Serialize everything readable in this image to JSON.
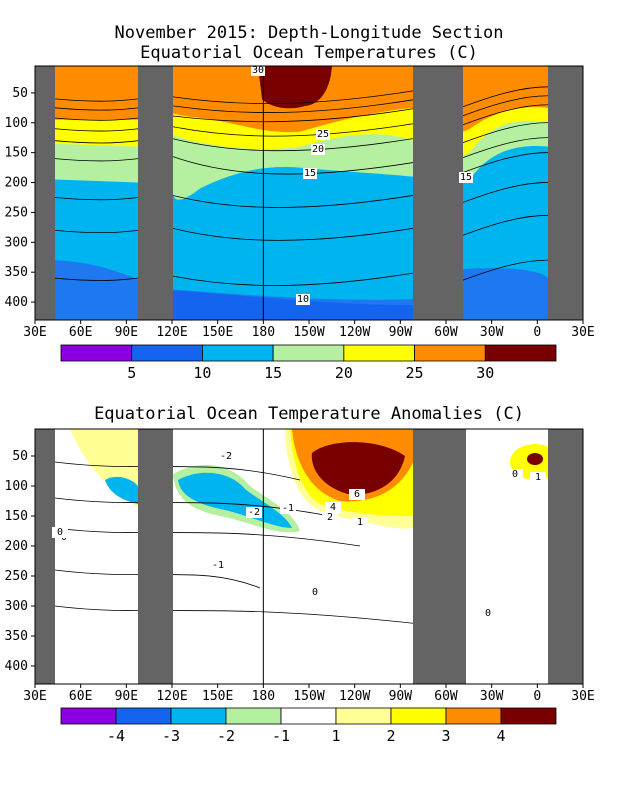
{
  "chart_data": [
    {
      "type": "heatmap",
      "title": "November 2015: Depth-Longitude Section",
      "subtitle": "Equatorial Ocean Temperatures (C)",
      "xticks": [
        "30E",
        "60E",
        "90E",
        "120E",
        "150E",
        "180",
        "150W",
        "120W",
        "90W",
        "60W",
        "30W",
        "0",
        "30E"
      ],
      "yticks": [
        "50",
        "100",
        "150",
        "200",
        "250",
        "300",
        "350",
        "400"
      ],
      "xlabel": "",
      "ylabel": "",
      "ylim": [
        430,
        5
      ],
      "colorbar": {
        "labels": [
          "5",
          "10",
          "15",
          "20",
          "25",
          "30"
        ],
        "colors": [
          "#8b00e0",
          "#1464f0",
          "#00b4f0",
          "#b4f0a0",
          "#ffff00",
          "#ff8c00",
          "#780000"
        ]
      },
      "contour_labels": [
        "30",
        "25",
        "20",
        "15",
        "15",
        "10"
      ],
      "land_mask_color": "#646464"
    },
    {
      "type": "heatmap",
      "title": "Equatorial Ocean Temperature Anomalies (C)",
      "xticks": [
        "30E",
        "60E",
        "90E",
        "120E",
        "150E",
        "180",
        "150W",
        "120W",
        "90W",
        "60W",
        "30W",
        "0",
        "30E"
      ],
      "yticks": [
        "50",
        "100",
        "150",
        "200",
        "250",
        "300",
        "350",
        "400"
      ],
      "xlabel": "",
      "ylabel": "",
      "ylim": [
        430,
        5
      ],
      "colorbar": {
        "labels": [
          "-4",
          "-3",
          "-2",
          "-1",
          "1",
          "2",
          "3",
          "4"
        ],
        "colors": [
          "#8b00e0",
          "#1464f0",
          "#00b4f0",
          "#b4f0a0",
          "#ffffff",
          "#ffff96",
          "#ffff00",
          "#ff8c00",
          "#780000"
        ]
      },
      "contour_labels": [
        "-2",
        "-2",
        "-1",
        "-1",
        "0",
        "0",
        "0",
        "0",
        "1",
        "1",
        "2",
        "4",
        "6",
        "0"
      ],
      "land_mask_color": "#646464"
    }
  ]
}
